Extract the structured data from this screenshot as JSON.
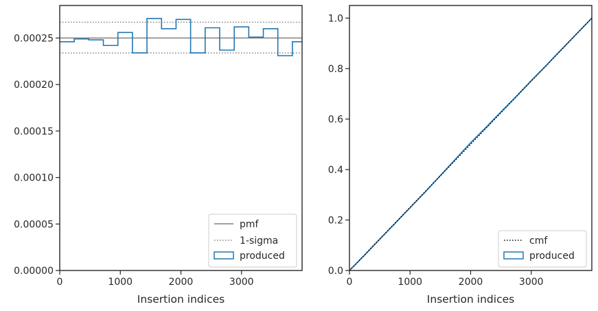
{
  "chart_data": [
    {
      "type": "histogram",
      "xlabel": "Insertion indices",
      "ylabel": "",
      "xlim": [
        0,
        4000
      ],
      "ylim": [
        0,
        0.000285
      ],
      "xticks": [
        0,
        1000,
        2000,
        3000
      ],
      "xtick_labels": [
        "0",
        "1000",
        "2000",
        "3000"
      ],
      "yticks": [
        0,
        5e-05,
        0.0001,
        0.00015,
        0.0002,
        0.00025
      ],
      "ytick_labels": [
        "0.00000",
        "0.00005",
        "0.00010",
        "0.00015",
        "0.00020",
        "0.00025"
      ],
      "grid": false,
      "legend_position": "lower right",
      "pmf": 0.00025,
      "sigma_lower": 0.000234,
      "sigma_upper": 0.000267,
      "bin_edges": [
        0,
        240,
        480,
        720,
        960,
        1200,
        1440,
        1680,
        1920,
        2160,
        2400,
        2640,
        2880,
        3120,
        3360,
        3600,
        3840,
        4000
      ],
      "values": [
        0.000246,
        0.000249,
        0.000248,
        0.000242,
        0.000256,
        0.000234,
        0.000271,
        0.00026,
        0.00027,
        0.000234,
        0.000261,
        0.000237,
        0.000262,
        0.000251,
        0.00026,
        0.000231,
        0.000246
      ],
      "series": [
        {
          "name": "pmf",
          "style": "solid",
          "color": "#808080"
        },
        {
          "name": "1-sigma",
          "style": "dotted",
          "color": "#808080"
        },
        {
          "name": "produced",
          "style": "step",
          "color": "#1f77b4"
        }
      ]
    },
    {
      "type": "line",
      "xlabel": "Insertion indices",
      "ylabel": "",
      "xlim": [
        0,
        4000
      ],
      "ylim": [
        0,
        1.05
      ],
      "xticks": [
        0,
        1000,
        2000,
        3000
      ],
      "xtick_labels": [
        "0",
        "1000",
        "2000",
        "3000"
      ],
      "yticks": [
        0,
        0.2,
        0.4,
        0.6,
        0.8,
        1.0
      ],
      "ytick_labels": [
        "0.0",
        "0.2",
        "0.4",
        "0.6",
        "0.8",
        "1.0"
      ],
      "grid": false,
      "legend_position": "lower right",
      "series": [
        {
          "name": "cmf",
          "style": "dotted",
          "color": "#000000",
          "x": [
            0,
            4000
          ],
          "y": [
            0,
            1.0
          ]
        },
        {
          "name": "produced",
          "style": "solid",
          "color": "#1f77b4",
          "x": [
            0,
            250,
            500,
            750,
            1000,
            1250,
            1500,
            1750,
            2000,
            2250,
            2500,
            2750,
            3000,
            3250,
            3500,
            3750,
            4000
          ],
          "y": [
            0,
            0.061,
            0.124,
            0.186,
            0.249,
            0.311,
            0.376,
            0.441,
            0.506,
            0.566,
            0.628,
            0.689,
            0.752,
            0.813,
            0.876,
            0.938,
            1.0
          ]
        }
      ]
    }
  ]
}
